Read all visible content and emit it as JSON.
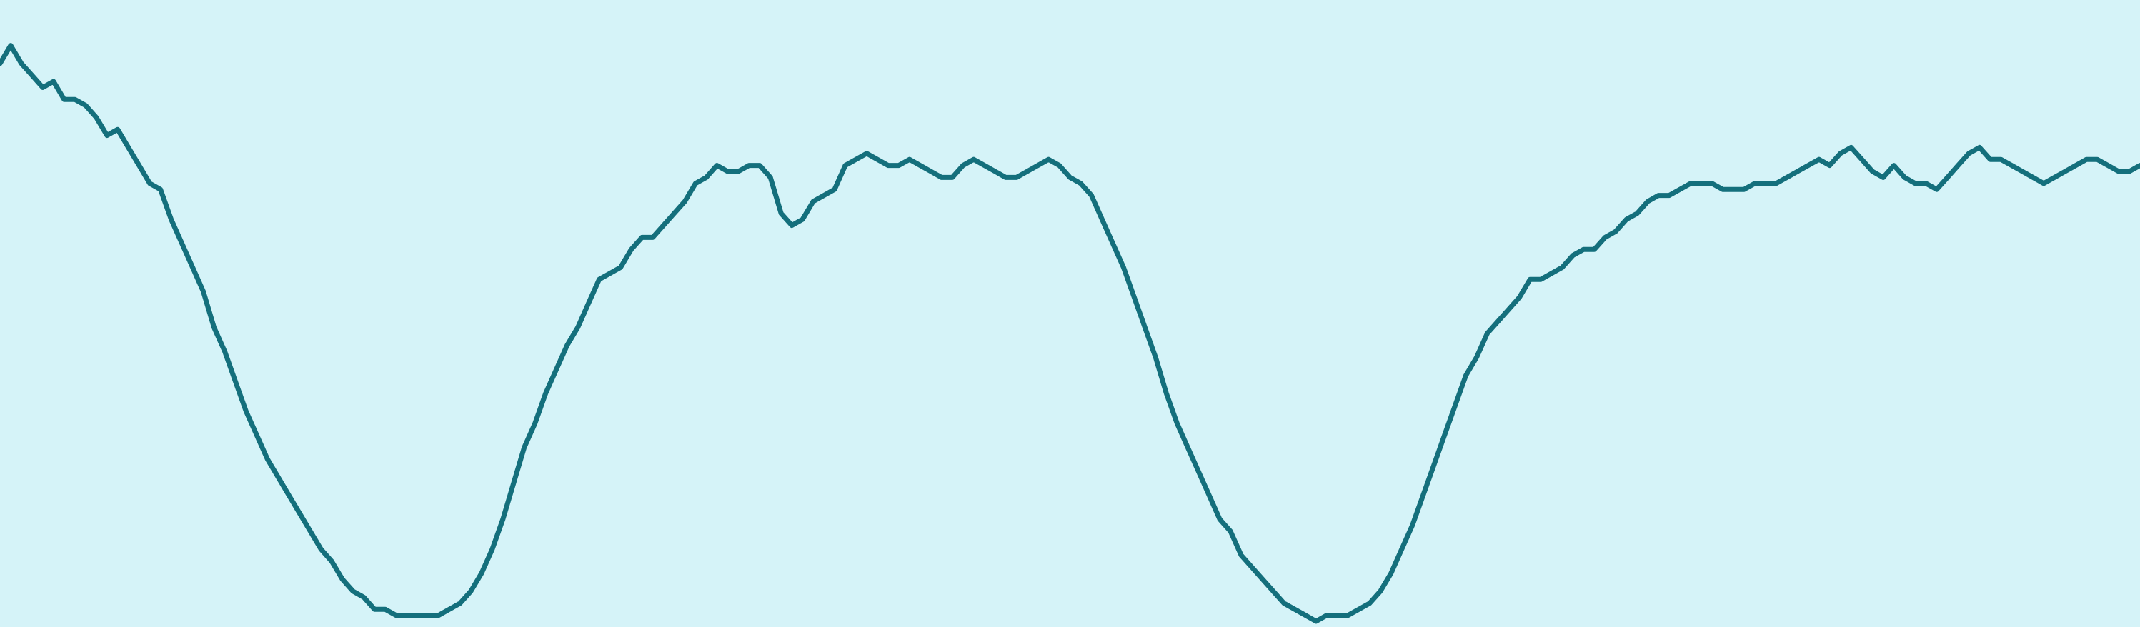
{
  "chart_data": {
    "type": "line",
    "title": "",
    "xlabel": "",
    "ylabel": "",
    "grid": false,
    "legend": "none",
    "xlim": [
      0,
      1000
    ],
    "ylim": [
      0,
      100
    ],
    "colors": {
      "background": "#d5f3f8",
      "line": "#146f7c"
    },
    "series": [
      {
        "x": [
          0,
          5,
          10,
          15,
          20,
          25,
          30,
          35,
          40,
          45,
          50,
          55,
          60,
          65,
          70,
          75,
          80,
          85,
          90,
          95,
          100,
          105,
          110,
          115,
          120,
          125,
          130,
          135,
          140,
          145,
          150,
          155,
          160,
          165,
          170,
          175,
          180,
          185,
          190,
          195,
          200,
          205,
          210,
          215,
          220,
          225,
          230,
          235,
          240,
          245,
          250,
          255,
          260,
          265,
          270,
          275,
          280,
          285,
          290,
          295,
          300,
          305,
          310,
          315,
          320,
          325,
          330,
          335,
          340,
          345,
          350,
          355,
          360,
          365,
          370,
          375,
          380,
          385,
          390,
          395,
          400,
          405,
          410,
          415,
          420,
          425,
          430,
          435,
          440,
          445,
          450,
          455,
          460,
          465,
          470,
          475,
          480,
          485,
          490,
          495,
          500,
          505,
          510,
          515,
          520,
          525,
          530,
          535,
          540,
          545,
          550,
          555,
          560,
          565,
          570,
          575,
          580,
          585,
          590,
          595,
          600,
          605,
          610,
          615,
          620,
          625,
          630,
          635,
          640,
          645,
          650,
          655,
          660,
          665,
          670,
          675,
          680,
          685,
          690,
          695,
          700,
          705,
          710,
          715,
          720,
          725,
          730,
          735,
          740,
          745,
          750,
          755,
          760,
          765,
          770,
          775,
          780,
          785,
          790,
          795,
          800,
          805,
          810,
          815,
          820,
          825,
          830,
          835,
          840,
          845,
          850,
          855,
          860,
          865,
          870,
          875,
          880,
          885,
          890,
          895,
          900,
          905,
          910,
          915,
          920,
          925,
          930,
          935,
          940,
          945,
          950,
          955,
          960,
          965,
          970,
          975,
          980,
          985,
          990,
          995,
          1000
        ],
        "y": [
          93,
          96,
          93,
          91,
          89,
          90,
          87,
          87,
          86,
          84,
          81,
          82,
          79,
          76,
          73,
          72,
          67,
          63,
          59,
          55,
          49,
          45,
          40,
          35,
          31,
          27,
          24,
          21,
          18,
          15,
          12,
          10,
          7,
          5,
          4,
          2,
          2,
          1,
          1,
          1,
          1,
          1,
          2,
          3,
          5,
          8,
          12,
          17,
          23,
          29,
          33,
          38,
          42,
          46,
          49,
          53,
          57,
          58,
          59,
          62,
          64,
          64,
          66,
          68,
          70,
          73,
          74,
          76,
          75,
          75,
          76,
          76,
          74,
          68,
          66,
          67,
          70,
          71,
          72,
          76,
          77,
          78,
          77,
          76,
          76,
          77,
          76,
          75,
          74,
          74,
          76,
          77,
          76,
          75,
          74,
          74,
          75,
          76,
          77,
          76,
          74,
          73,
          71,
          67,
          63,
          59,
          54,
          49,
          44,
          38,
          33,
          29,
          25,
          21,
          17,
          15,
          11,
          9,
          7,
          5,
          3,
          2,
          1,
          0,
          1,
          1,
          1,
          2,
          3,
          5,
          8,
          12,
          16,
          21,
          26,
          31,
          36,
          41,
          44,
          48,
          50,
          52,
          54,
          57,
          57,
          58,
          59,
          61,
          62,
          62,
          64,
          65,
          67,
          68,
          70,
          71,
          71,
          72,
          73,
          73,
          73,
          72,
          72,
          72,
          73,
          73,
          73,
          74,
          75,
          76,
          77,
          76,
          78,
          79,
          77,
          75,
          74,
          76,
          74,
          73,
          73,
          72,
          74,
          76,
          78,
          79,
          77,
          77,
          76,
          75,
          74,
          73,
          74,
          75,
          76,
          77,
          77,
          76,
          75,
          75,
          76
        ]
      }
    ]
  }
}
